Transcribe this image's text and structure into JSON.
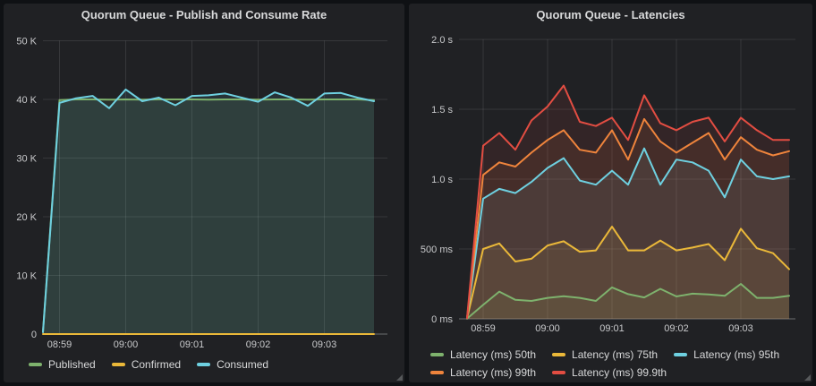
{
  "page": {
    "background": "#0f1114",
    "panel_background": "#202124"
  },
  "panels": [
    {
      "title": "Quorum Queue - Publish and Consume Rate"
    },
    {
      "title": "Quorum Queue - Latencies"
    }
  ],
  "icons": {
    "panel_resize_handle": "diagonal-resize-grip"
  },
  "colors": {
    "green": "#7EB26D",
    "yellow": "#EAB839",
    "cyan": "#6ED0E0",
    "orange": "#EF843C",
    "red": "#E24D42",
    "axis_text": "#c9cacc",
    "legend_text": "#d8d9da"
  },
  "chart_data": [
    {
      "type": "line",
      "title": "Quorum Queue - Publish and Consume Rate",
      "xlabel": "",
      "ylabel": "",
      "grid": true,
      "legend_position": "bottom",
      "x": [
        "08:58:45",
        "08:59:00",
        "08:59:15",
        "08:59:30",
        "08:59:45",
        "09:00:00",
        "09:00:15",
        "09:00:30",
        "09:00:45",
        "09:01:00",
        "09:01:15",
        "09:01:30",
        "09:01:45",
        "09:02:00",
        "09:02:15",
        "09:02:30",
        "09:02:45",
        "09:03:00",
        "09:03:15",
        "09:03:30",
        "09:03:45"
      ],
      "x_ticks": [
        {
          "time": "08:59:00",
          "label": "08:59"
        },
        {
          "time": "09:00:00",
          "label": "09:00"
        },
        {
          "time": "09:01:00",
          "label": "09:01"
        },
        {
          "time": "09:02:00",
          "label": "09:02"
        },
        {
          "time": "09:03:00",
          "label": "09:03"
        }
      ],
      "ylim": [
        0,
        50000
      ],
      "y_ticks": [
        {
          "value": 0,
          "label": "0"
        },
        {
          "value": 10000,
          "label": "10 K"
        },
        {
          "value": 20000,
          "label": "20 K"
        },
        {
          "value": 30000,
          "label": "30 K"
        },
        {
          "value": 40000,
          "label": "40 K"
        },
        {
          "value": 50000,
          "label": "50 K"
        }
      ],
      "series": [
        {
          "name": "Published",
          "color": "#7EB26D",
          "fill_opacity": 0.1,
          "values": [
            400,
            39900,
            40000,
            40000,
            39950,
            40000,
            39950,
            40000,
            40000,
            40000,
            39950,
            40000,
            40000,
            39950,
            40000,
            40000,
            39950,
            40000,
            40000,
            40000,
            39900
          ]
        },
        {
          "name": "Confirmed",
          "color": "#EAB839",
          "fill_opacity": 0.1,
          "values": [
            0,
            0,
            0,
            0,
            0,
            0,
            0,
            0,
            0,
            0,
            0,
            0,
            0,
            0,
            0,
            0,
            0,
            0,
            0,
            0,
            0
          ]
        },
        {
          "name": "Consumed",
          "color": "#6ED0E0",
          "fill_opacity": 0.1,
          "values": [
            300,
            39400,
            40200,
            40600,
            38500,
            41700,
            39700,
            40300,
            39000,
            40600,
            40700,
            41000,
            40300,
            39600,
            41200,
            40300,
            38900,
            41000,
            41100,
            40300,
            39700
          ]
        }
      ],
      "legend_rows": [
        [
          "Published",
          "Confirmed",
          "Consumed"
        ]
      ]
    },
    {
      "type": "line",
      "title": "Quorum Queue - Latencies",
      "xlabel": "",
      "ylabel": "",
      "grid": true,
      "legend_position": "bottom",
      "x": [
        "08:58:45",
        "08:59:00",
        "08:59:15",
        "08:59:30",
        "08:59:45",
        "09:00:00",
        "09:00:15",
        "09:00:30",
        "09:00:45",
        "09:01:00",
        "09:01:15",
        "09:01:30",
        "09:01:45",
        "09:02:00",
        "09:02:15",
        "09:02:30",
        "09:02:45",
        "09:03:00",
        "09:03:15",
        "09:03:30",
        "09:03:45"
      ],
      "x_ticks": [
        {
          "time": "08:59:00",
          "label": "08:59"
        },
        {
          "time": "09:00:00",
          "label": "09:00"
        },
        {
          "time": "09:01:00",
          "label": "09:01"
        },
        {
          "time": "09:02:00",
          "label": "09:02"
        },
        {
          "time": "09:03:00",
          "label": "09:03"
        }
      ],
      "ylim": [
        0,
        2000
      ],
      "y_ticks": [
        {
          "value": 0,
          "label": "0 ms"
        },
        {
          "value": 500,
          "label": "500 ms"
        },
        {
          "value": 1000,
          "label": "1.0 s"
        },
        {
          "value": 1500,
          "label": "1.5 s"
        },
        {
          "value": 2000,
          "label": "2.0 s"
        }
      ],
      "series": [
        {
          "name": "Latency (ms) 50th",
          "color": "#7EB26D",
          "fill_opacity": 0.1,
          "values": [
            2,
            100,
            195,
            136,
            128,
            150,
            162,
            150,
            128,
            225,
            177,
            153,
            215,
            160,
            180,
            175,
            165,
            250,
            150,
            150,
            165
          ]
        },
        {
          "name": "Latency (ms) 75th",
          "color": "#EAB839",
          "fill_opacity": 0.1,
          "values": [
            3,
            500,
            540,
            410,
            430,
            525,
            555,
            480,
            490,
            660,
            490,
            490,
            560,
            490,
            510,
            535,
            420,
            645,
            505,
            470,
            355
          ]
        },
        {
          "name": "Latency (ms) 95th",
          "color": "#6ED0E0",
          "fill_opacity": 0.1,
          "values": [
            4,
            860,
            930,
            900,
            980,
            1080,
            1150,
            990,
            960,
            1060,
            960,
            1220,
            960,
            1140,
            1120,
            1060,
            870,
            1140,
            1020,
            1000,
            1020
          ]
        },
        {
          "name": "Latency (ms) 99th",
          "color": "#EF843C",
          "fill_opacity": 0.1,
          "values": [
            5,
            1030,
            1120,
            1090,
            1190,
            1280,
            1350,
            1210,
            1190,
            1350,
            1140,
            1430,
            1270,
            1190,
            1260,
            1330,
            1140,
            1300,
            1210,
            1170,
            1200
          ]
        },
        {
          "name": "Latency (ms) 99.9th",
          "color": "#E24D42",
          "fill_opacity": 0.1,
          "values": [
            6,
            1240,
            1330,
            1210,
            1420,
            1520,
            1670,
            1410,
            1380,
            1440,
            1280,
            1600,
            1400,
            1350,
            1410,
            1440,
            1270,
            1440,
            1350,
            1280,
            1280
          ]
        }
      ],
      "legend_rows": [
        [
          "Latency (ms) 50th",
          "Latency (ms) 75th",
          "Latency (ms) 95th"
        ],
        [
          "Latency (ms) 99th",
          "Latency (ms) 99.9th"
        ]
      ]
    }
  ]
}
